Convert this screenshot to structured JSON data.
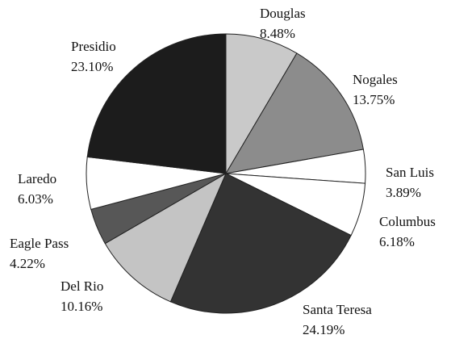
{
  "chart_data": {
    "type": "pie",
    "categories": [
      "Douglas",
      "Nogales",
      "San Luis",
      "Columbus",
      "Santa Teresa",
      "Del Rio",
      "Eagle Pass",
      "Laredo",
      "Presidio"
    ],
    "values": [
      8.48,
      13.75,
      3.89,
      6.18,
      24.19,
      10.16,
      4.22,
      6.03,
      23.1
    ],
    "value_labels": [
      "8.48%",
      "13.75%",
      "3.89%",
      "6.18%",
      "24.19%",
      "10.16%",
      "4.22%",
      "6.03%",
      "23.10%"
    ],
    "colors": [
      "#c9c9c9",
      "#8c8c8c",
      "#ffffff",
      "#ffffff",
      "#333333",
      "#c4c4c4",
      "#575757",
      "#ffffff",
      "#1c1c1c"
    ]
  }
}
